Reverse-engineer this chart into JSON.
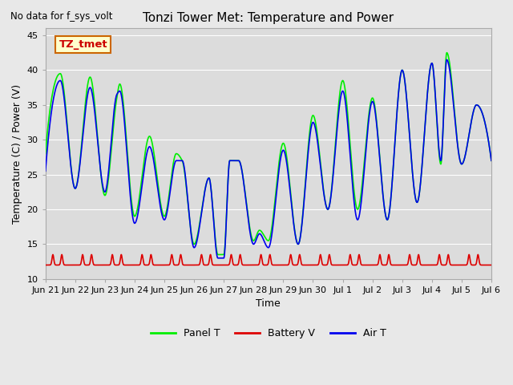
{
  "title": "Tonzi Tower Met: Temperature and Power",
  "xlabel": "Time",
  "ylabel": "Temperature (C) / Power (V)",
  "ylim": [
    10,
    46
  ],
  "yticks": [
    10,
    15,
    20,
    25,
    30,
    35,
    40,
    45
  ],
  "background_color": "#e8e8e8",
  "plot_bg_color": "#dcdcdc",
  "note_text": "No data for f_sys_volt",
  "annotation_text": "TZ_tmet",
  "annotation_box_color": "#ffffcc",
  "annotation_border_color": "#cc6600",
  "annotation_text_color": "#cc0000",
  "panel_t_color": "#00ee00",
  "battery_v_color": "#dd0000",
  "air_t_color": "#0000ee",
  "legend_labels": [
    "Panel T",
    "Battery V",
    "Air T"
  ],
  "x_tick_labels": [
    "Jun 21",
    "Jun 22",
    "Jun 23",
    "Jun 24",
    "Jun 25",
    "Jun 26",
    "Jun 27",
    "Jun 28",
    "Jun 29",
    "Jun 30",
    "Jul 1",
    "Jul 2",
    "Jul 3",
    "Jul 4",
    "Jul 5",
    "Jul 6"
  ],
  "grid_color": "#ffffff",
  "linewidth": 1.2,
  "panel_t_peaks": [
    28.0,
    39.5,
    22.0,
    39.0,
    22.0,
    38.0,
    32.5,
    19.0,
    30.5,
    19.0,
    28.0,
    15.0,
    24.5,
    13.5,
    27.0,
    15.5,
    17.0,
    15.5,
    29.5,
    15.0,
    33.5,
    20.0,
    38.5,
    20.0,
    36.0,
    18.5,
    40.0,
    21.0,
    41.0,
    26.5,
    42.5,
    26.5,
    35.0,
    27.0
  ],
  "air_t_peaks": [
    25.5,
    38.5,
    23.0,
    37.5,
    22.5,
    37.0,
    32.5,
    18.0,
    29.0,
    18.5,
    27.0,
    14.5,
    24.5,
    13.0,
    27.0,
    15.0,
    16.5,
    14.5,
    28.5,
    15.0,
    32.5,
    20.0,
    37.0,
    18.5,
    35.5,
    18.5,
    40.0,
    21.0,
    41.0,
    27.0,
    41.5,
    26.5,
    35.0,
    27.0
  ],
  "battery_baseline": 12.0,
  "battery_spike": 1.5
}
